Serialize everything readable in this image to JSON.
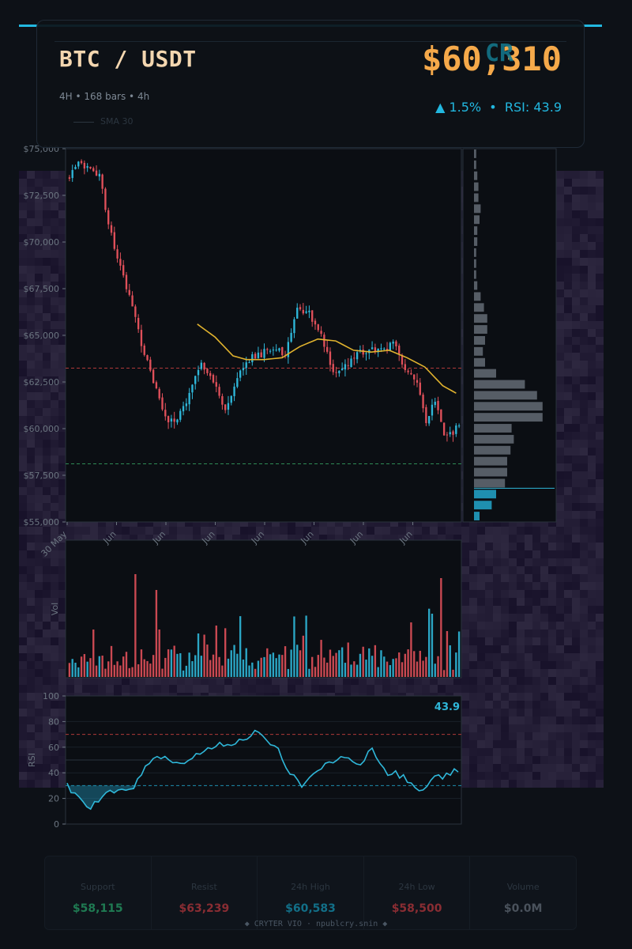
{
  "header": {
    "pair": "BTC / USDT",
    "subtitle": "4H  •  168 bars  •  4h",
    "price": "$60,310",
    "change": "▲ 1.5%",
    "separator": "•",
    "rsi_text": "RSI: 43.9",
    "legend_label": "SMA 30",
    "logo_text": "CR"
  },
  "colors": {
    "accent": "#22b8e0",
    "up": "#2fb7d9",
    "down": "#e0505a",
    "sma": "#e0b22e",
    "price": "#f5a94a",
    "support": "#2e8a55",
    "resist": "#b03a3a"
  },
  "stats": [
    {
      "label": "Support",
      "value": "$58,115",
      "color": "#1f7a52"
    },
    {
      "label": "Resist",
      "value": "$63,239",
      "color": "#8a2d33"
    },
    {
      "label": "24h High",
      "value": "$60,583",
      "color": "#126f88"
    },
    {
      "label": "24h Low",
      "value": "$58,500",
      "color": "#8a2d33"
    },
    {
      "label": "Volume",
      "value": "$0.0M",
      "color": "#4a525c"
    }
  ],
  "footer": "◆ CRYTER VIO · npublcry.snin ◆",
  "chart_data": [
    {
      "type": "candlestick",
      "ylabel": "",
      "ylim": [
        55000,
        75000
      ],
      "yticks": [
        "$55,000",
        "$57,500",
        "$60,000",
        "$62,500",
        "$65,000",
        "$67,500",
        "$70,000",
        "$72,500",
        "$75,000"
      ],
      "xticks": [
        "30 May",
        "Jun",
        "Jun",
        "Jun",
        "Jun",
        "Jun",
        "Jun",
        "Jun"
      ],
      "support": 58115,
      "resistance": 63239,
      "close_keyframes": [
        [
          0,
          73500
        ],
        [
          3,
          74100
        ],
        [
          7,
          73900
        ],
        [
          10,
          73500
        ],
        [
          13,
          71000
        ],
        [
          18,
          68000
        ],
        [
          21,
          66500
        ],
        [
          25,
          64000
        ],
        [
          29,
          62000
        ],
        [
          33,
          60300
        ],
        [
          36,
          60600
        ],
        [
          40,
          61800
        ],
        [
          44,
          63500
        ],
        [
          48,
          62500
        ],
        [
          52,
          61000
        ],
        [
          56,
          62800
        ],
        [
          60,
          63700
        ],
        [
          64,
          64000
        ],
        [
          68,
          64300
        ],
        [
          72,
          63900
        ],
        [
          76,
          66500
        ],
        [
          80,
          66200
        ],
        [
          84,
          65000
        ],
        [
          88,
          63000
        ],
        [
          92,
          63300
        ],
        [
          96,
          64000
        ],
        [
          100,
          64300
        ],
        [
          104,
          64100
        ],
        [
          108,
          64700
        ],
        [
          112,
          63000
        ],
        [
          116,
          62600
        ],
        [
          119,
          60500
        ],
        [
          122,
          61500
        ],
        [
          125,
          59500
        ],
        [
          128,
          59800
        ],
        [
          130,
          60300
        ]
      ],
      "sma": {
        "name": "SMA 30",
        "start_bar": 29,
        "keyframes": [
          [
            29,
            65600
          ],
          [
            33,
            64900
          ],
          [
            37,
            63900
          ],
          [
            40,
            63700
          ],
          [
            44,
            63700
          ],
          [
            48,
            63800
          ],
          [
            52,
            64400
          ],
          [
            56,
            64800
          ],
          [
            60,
            64700
          ],
          [
            64,
            64200
          ],
          [
            68,
            64100
          ],
          [
            72,
            64200
          ],
          [
            76,
            63800
          ],
          [
            80,
            63300
          ],
          [
            84,
            62300
          ],
          [
            87,
            61900
          ]
        ]
      }
    },
    {
      "type": "bar",
      "ylabel": "Vol",
      "note": "volume per bar, colored by candle direction"
    },
    {
      "type": "line",
      "ylabel": "RSI",
      "ylim": [
        0,
        100
      ],
      "yticks": [
        "0",
        "20",
        "40",
        "60",
        "80",
        "100"
      ],
      "overbought": 70,
      "oversold": 30,
      "last_label": "43.9",
      "keyframes": [
        [
          0,
          30
        ],
        [
          3,
          20
        ],
        [
          5,
          12
        ],
        [
          8,
          18
        ],
        [
          10,
          26
        ],
        [
          12,
          22
        ],
        [
          14,
          27
        ],
        [
          17,
          30
        ],
        [
          20,
          44
        ],
        [
          23,
          51
        ],
        [
          26,
          52
        ],
        [
          29,
          45
        ],
        [
          32,
          53
        ],
        [
          35,
          58
        ],
        [
          38,
          61
        ],
        [
          41,
          63
        ],
        [
          44,
          64
        ],
        [
          46,
          68
        ],
        [
          48,
          74
        ],
        [
          51,
          64
        ],
        [
          54,
          57
        ],
        [
          56,
          44
        ],
        [
          58,
          36
        ],
        [
          60,
          31
        ],
        [
          63,
          39
        ],
        [
          66,
          46
        ],
        [
          69,
          50
        ],
        [
          72,
          52
        ],
        [
          75,
          48
        ],
        [
          78,
          58
        ],
        [
          80,
          49
        ],
        [
          82,
          38
        ],
        [
          84,
          40
        ],
        [
          86,
          36
        ],
        [
          88,
          33
        ],
        [
          90,
          25
        ],
        [
          92,
          31
        ],
        [
          94,
          39
        ],
        [
          96,
          36
        ],
        [
          98,
          40
        ],
        [
          100,
          43
        ]
      ]
    },
    {
      "type": "bar",
      "orientation": "horizontal",
      "note": "volume profile by price level"
    }
  ]
}
